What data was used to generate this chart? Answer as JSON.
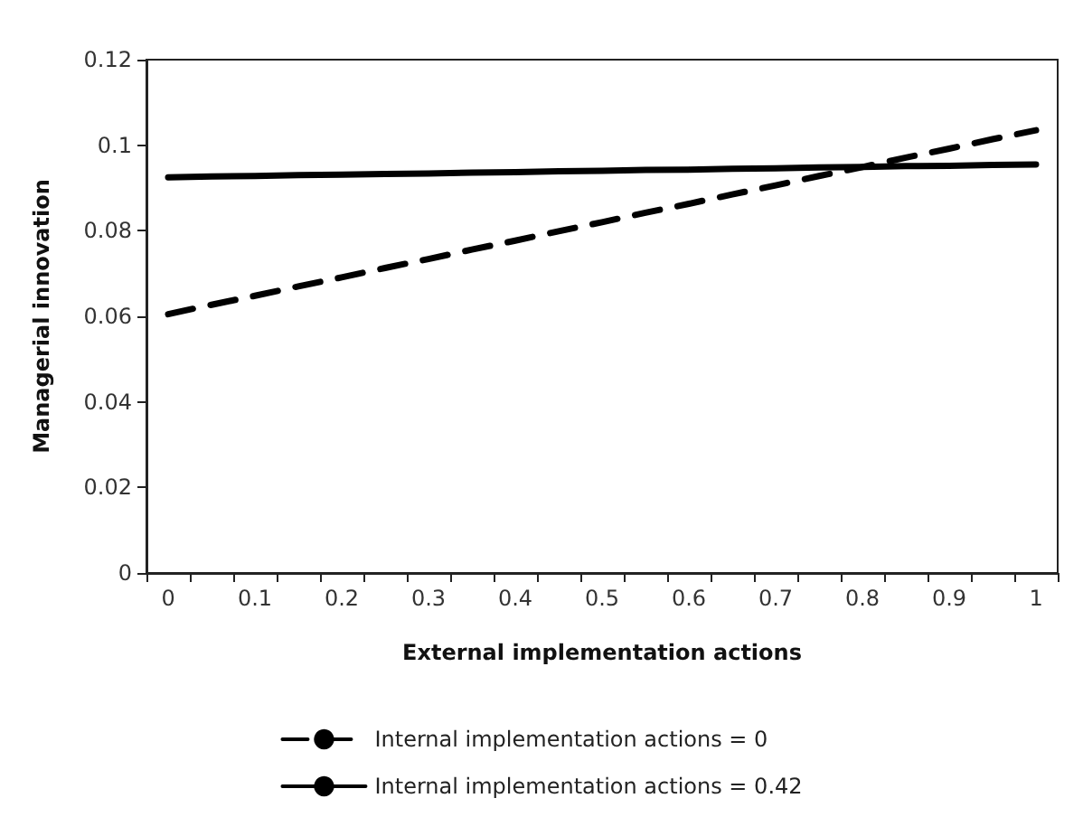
{
  "chart_data": {
    "type": "line",
    "xlabel": "External implementation actions",
    "ylabel": "Managerial innovation",
    "categories": [
      "0",
      null,
      "0.1",
      null,
      "0.2",
      null,
      "0.3",
      null,
      "0.4",
      null,
      "0.5",
      null,
      "0.6",
      null,
      "0.7",
      null,
      "0.8",
      null,
      "0.9",
      null,
      "1"
    ],
    "series": [
      {
        "name": "Internal implementation actions = 0",
        "color": "#000000",
        "line_style": "dashed",
        "values": [
          0.0605,
          0.0627,
          0.0648,
          0.067,
          0.0691,
          0.0713,
          0.0734,
          0.0756,
          0.0777,
          0.0799,
          0.082,
          0.0842,
          0.0863,
          0.0885,
          0.0906,
          0.0928,
          0.0949,
          0.0971,
          0.0992,
          0.1014,
          0.1035
        ]
      },
      {
        "name": "Internal implementation actions = 0.42",
        "color": "#000000",
        "line_style": "solid",
        "values": [
          0.0925,
          0.0927,
          0.0928,
          0.093,
          0.0931,
          0.0933,
          0.0934,
          0.0936,
          0.0937,
          0.0939,
          0.094,
          0.0942,
          0.0943,
          0.0945,
          0.0946,
          0.0948,
          0.0949,
          0.0951,
          0.0952,
          0.0954,
          0.0955
        ]
      }
    ],
    "ylim": [
      0,
      0.12
    ],
    "yticks": [
      0,
      0.02,
      0.04,
      0.06,
      0.08,
      0.1,
      0.12
    ],
    "grid": false,
    "legend": "bottom",
    "marker": "none"
  }
}
